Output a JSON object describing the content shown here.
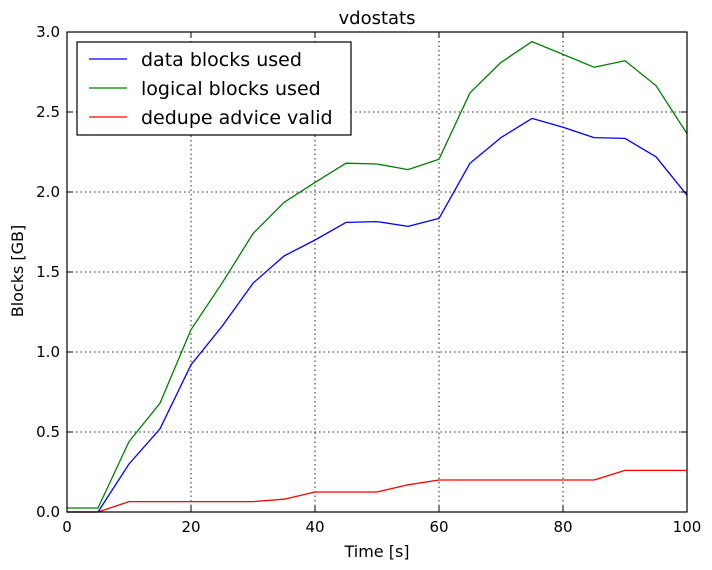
{
  "chart_data": {
    "type": "line",
    "title": "vdostats",
    "xlabel": "Time [s]",
    "ylabel": "Blocks [GB]",
    "xlim": [
      0,
      100
    ],
    "ylim": [
      0,
      3.0
    ],
    "xticks": [
      0,
      20,
      40,
      60,
      80,
      100
    ],
    "xtick_labels": [
      "0",
      "20",
      "40",
      "60",
      "80",
      "100"
    ],
    "yticks": [
      0,
      0.5,
      1.0,
      1.5,
      2.0,
      2.5,
      3.0
    ],
    "ytick_labels": [
      "0.0",
      "0.5",
      "1.0",
      "1.5",
      "2.0",
      "2.5",
      "3.0"
    ],
    "grid": true,
    "legend_position": "top-left",
    "x": [
      0,
      5,
      10,
      15,
      20,
      25,
      30,
      35,
      40,
      45,
      50,
      55,
      60,
      65,
      70,
      75,
      80,
      85,
      90,
      95,
      100
    ],
    "series": [
      {
        "name": "data blocks used",
        "color": "#0000ff",
        "values": [
          0.0,
          0.0,
          0.3,
          0.52,
          0.92,
          1.16,
          1.43,
          1.6,
          1.7,
          1.81,
          1.815,
          1.785,
          1.835,
          2.18,
          2.34,
          2.46,
          2.405,
          2.34,
          2.335,
          2.22,
          1.98
        ]
      },
      {
        "name": "logical blocks used",
        "color": "#008000",
        "values": [
          0.025,
          0.025,
          0.44,
          0.68,
          1.14,
          1.43,
          1.74,
          1.935,
          2.06,
          2.18,
          2.175,
          2.14,
          2.205,
          2.62,
          2.81,
          2.94,
          2.86,
          2.78,
          2.82,
          2.665,
          2.365
        ]
      },
      {
        "name": "dedupe advice valid",
        "color": "#ff0000",
        "values": [
          0.0,
          0.0,
          0.065,
          0.065,
          0.065,
          0.065,
          0.065,
          0.08,
          0.125,
          0.125,
          0.125,
          0.17,
          0.2,
          0.2,
          0.2,
          0.2,
          0.2,
          0.2,
          0.26,
          0.26,
          0.26
        ]
      }
    ]
  }
}
